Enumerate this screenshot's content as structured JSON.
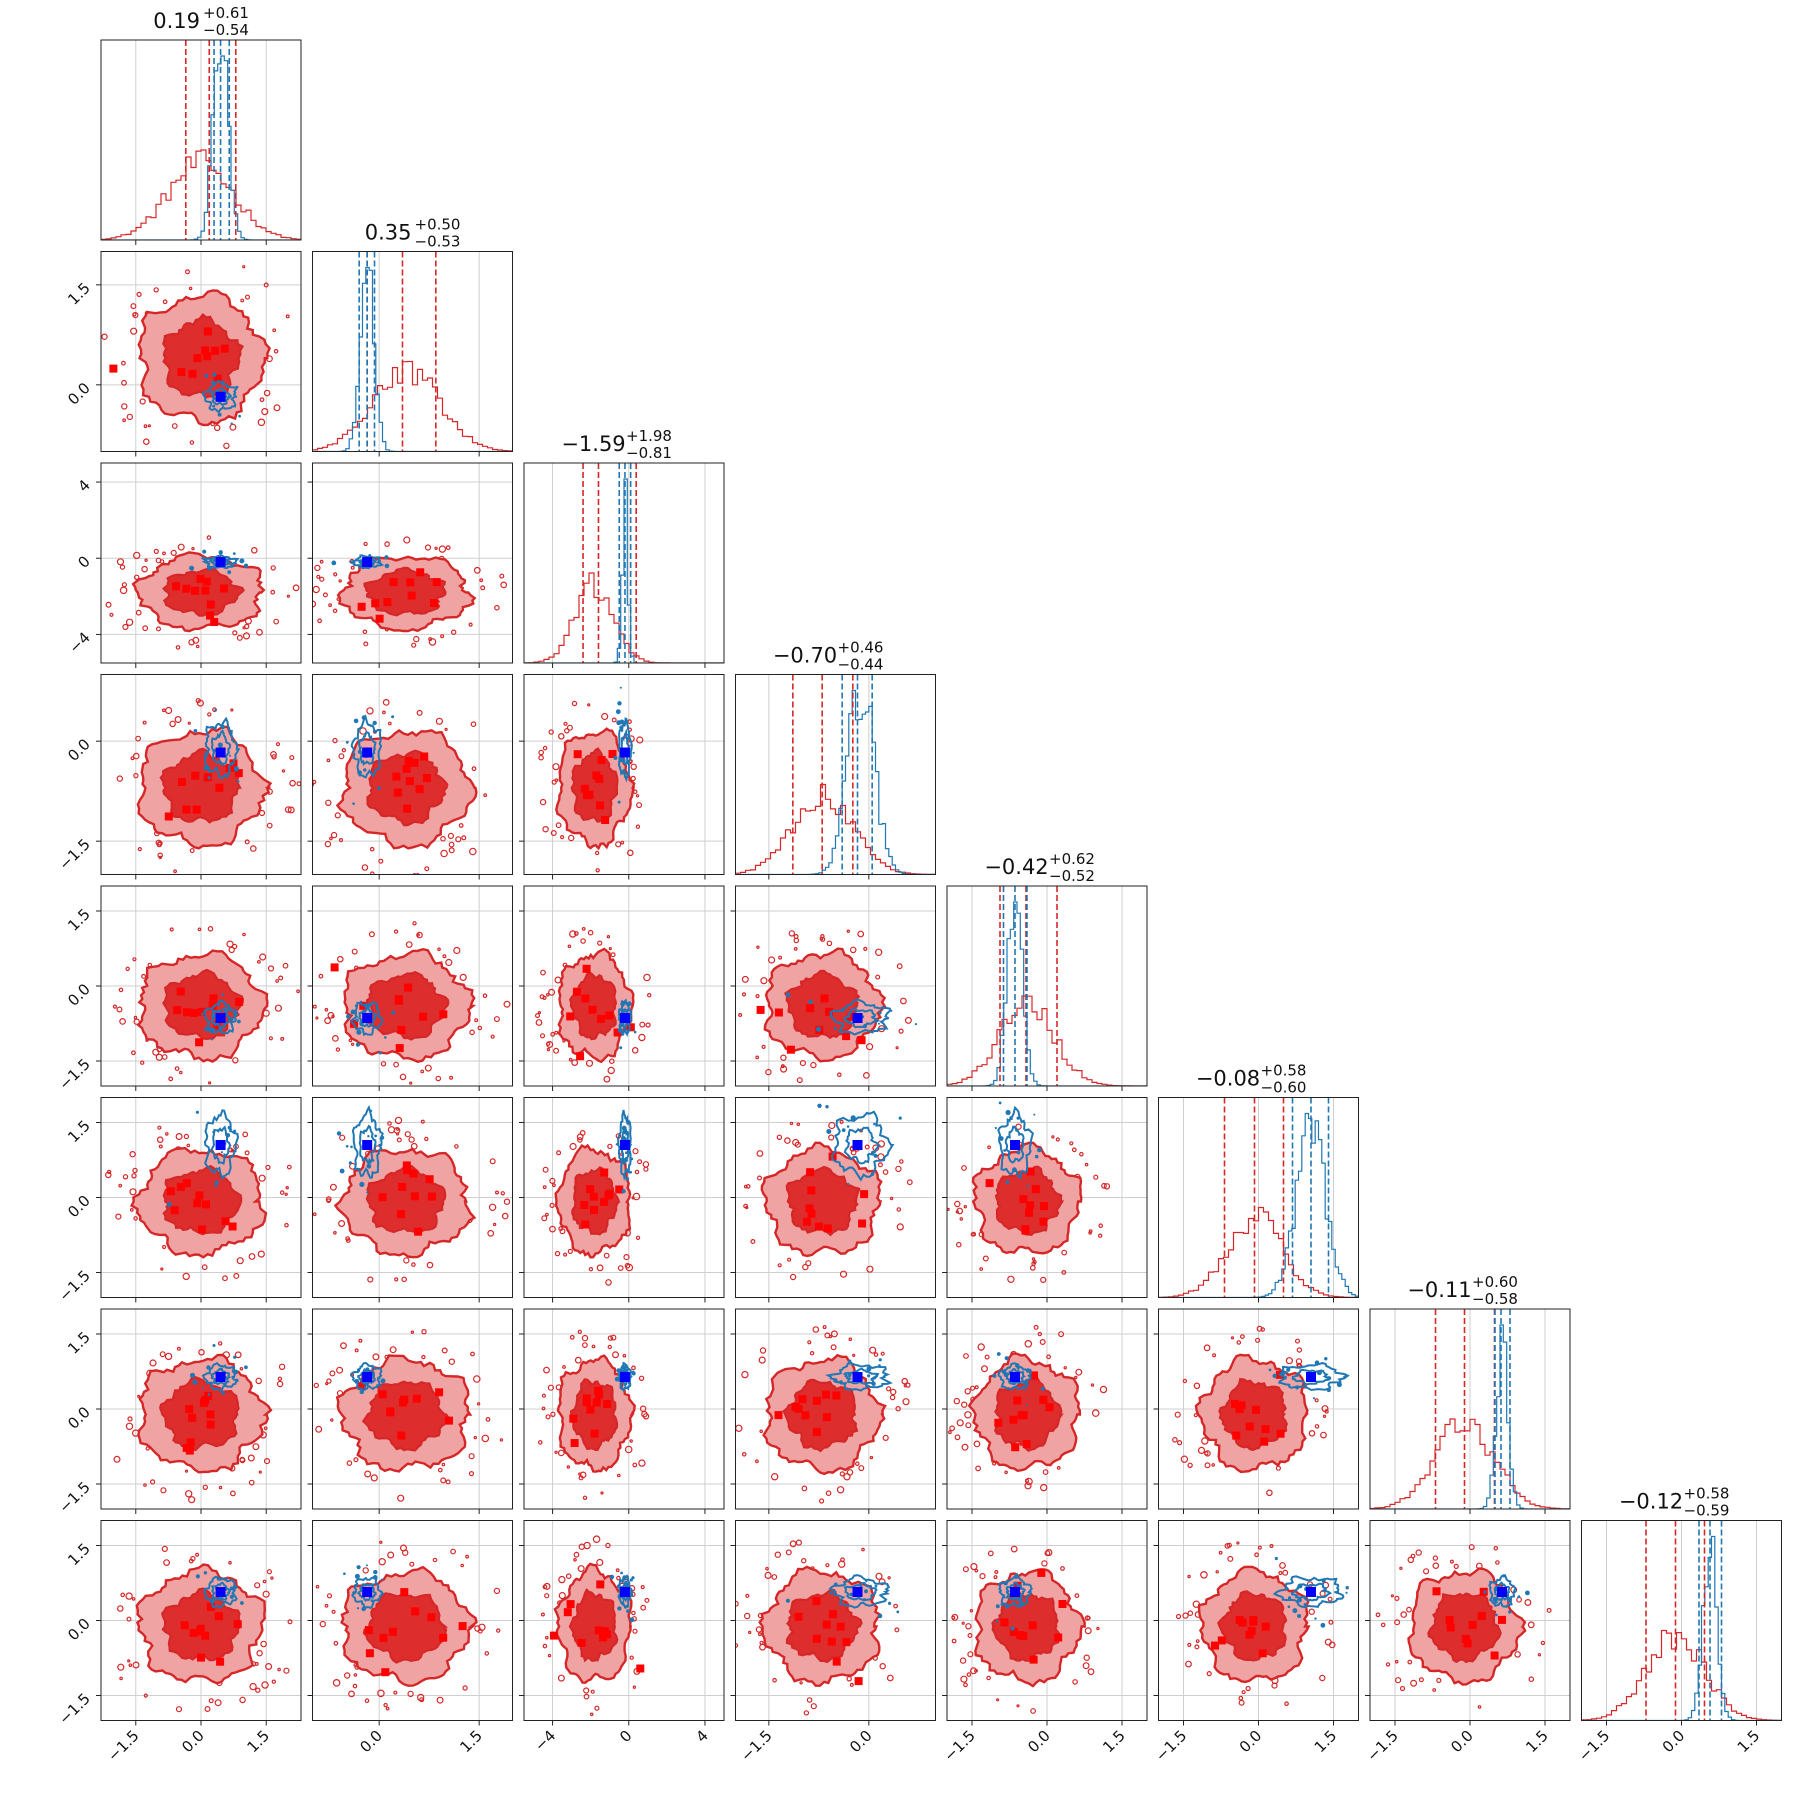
{
  "chart_data": {
    "type": "corner",
    "n_params": 8,
    "series": [
      {
        "name": "",
        "color": "#d62728",
        "role": "broad posterior"
      },
      {
        "name": "",
        "color": "#1f77b4",
        "role": "narrow posterior"
      }
    ],
    "truth_marker_color": "#0000ff",
    "red_marker_color": "#ff0000",
    "grid": true,
    "params": [
      {
        "range": [
          -2.3,
          2.3
        ],
        "ticks": [
          -1.5,
          0.0,
          1.5
        ],
        "tick_labels": [
          "−1.5",
          "0.0",
          "1.5"
        ],
        "title_value": "0.19",
        "title_plus": "+0.61",
        "title_minus": "−0.54",
        "red_quantiles": [
          -0.35,
          0.19,
          0.8
        ],
        "blue_quantiles": [
          0.3,
          0.45,
          0.65
        ],
        "red_center": 0.0,
        "red_sd": 0.75,
        "blue_center": 0.45,
        "blue_sd": 0.17,
        "truth": 0.45
      },
      {
        "range": [
          -1.0,
          2.0
        ],
        "ticks": [
          0.0,
          1.5
        ],
        "tick_labels": [
          "0.0",
          "1.5"
        ],
        "title_value": "0.35",
        "title_plus": "+0.50",
        "title_minus": "−0.53",
        "red_quantiles": [
          -0.18,
          0.35,
          0.85
        ],
        "blue_quantiles": [
          -0.3,
          -0.18,
          -0.07
        ],
        "red_center": 0.4,
        "red_sd": 0.5,
        "blue_center": -0.18,
        "blue_sd": 0.1,
        "truth": -0.18
      },
      {
        "range": [
          -5.5,
          5.0
        ],
        "ticks": [
          -4,
          0,
          4
        ],
        "tick_labels": [
          "−4",
          "0",
          "4"
        ],
        "title_value": "−1.59",
        "title_plus": "+1.98",
        "title_minus": "−0.81",
        "red_quantiles": [
          -2.4,
          -1.59,
          0.39
        ],
        "blue_quantiles": [
          -0.5,
          -0.2,
          0.1
        ],
        "red_center": -1.8,
        "red_sd": 1.0,
        "blue_center": -0.2,
        "blue_sd": 0.15,
        "truth": -0.2
      },
      {
        "range": [
          -2.0,
          1.0
        ],
        "ticks": [
          -1.5,
          0.0
        ],
        "tick_labels": [
          "−1.5",
          "0.0"
        ],
        "title_value": "−0.70",
        "title_plus": "+0.46",
        "title_minus": "−0.44",
        "red_quantiles": [
          -1.14,
          -0.7,
          -0.24
        ],
        "blue_quantiles": [
          -0.4,
          -0.17,
          0.05
        ],
        "red_center": -0.7,
        "red_sd": 0.45,
        "blue_center": -0.12,
        "blue_sd": 0.2,
        "truth": -0.17
      },
      {
        "range": [
          -2.0,
          2.0
        ],
        "ticks": [
          -1.5,
          0.0,
          1.5
        ],
        "tick_labels": [
          "−1.5",
          "0.0",
          "1.5"
        ],
        "title_value": "−0.42",
        "title_plus": "+0.62",
        "title_minus": "−0.52",
        "red_quantiles": [
          -0.94,
          -0.42,
          0.2
        ],
        "blue_quantiles": [
          -0.87,
          -0.64,
          -0.4
        ],
        "red_center": -0.4,
        "red_sd": 0.55,
        "blue_center": -0.64,
        "blue_sd": 0.15,
        "truth": -0.64
      },
      {
        "range": [
          -2.0,
          2.0
        ],
        "ticks": [
          -1.5,
          0.0,
          1.5
        ],
        "tick_labels": [
          "−1.5",
          "0.0",
          "1.5"
        ],
        "title_value": "−0.08",
        "title_plus": "+0.58",
        "title_minus": "−0.60",
        "red_quantiles": [
          -0.68,
          -0.08,
          0.5
        ],
        "blue_quantiles": [
          0.68,
          1.05,
          1.4
        ],
        "red_center": -0.08,
        "red_sd": 0.55,
        "blue_center": 1.05,
        "blue_sd": 0.3,
        "truth": 1.05
      },
      {
        "range": [
          -2.0,
          2.0
        ],
        "ticks": [
          -1.5,
          0.0,
          1.5
        ],
        "tick_labels": [
          "−1.5",
          "0.0",
          "1.5"
        ],
        "title_value": "−0.11",
        "title_plus": "+0.60",
        "title_minus": "−0.58",
        "red_quantiles": [
          -0.69,
          -0.11,
          0.49
        ],
        "blue_quantiles": [
          0.5,
          0.62,
          0.8
        ],
        "red_center": -0.11,
        "red_sd": 0.58,
        "blue_center": 0.64,
        "blue_sd": 0.12,
        "truth": 0.64
      },
      {
        "range": [
          -2.0,
          2.0
        ],
        "ticks": [
          -1.5,
          0.0,
          1.5
        ],
        "tick_labels": [
          "−1.5",
          "0.0",
          "1.5"
        ],
        "title_value": "−0.12",
        "title_plus": "+0.58",
        "title_minus": "−0.59",
        "red_quantiles": [
          -0.71,
          -0.12,
          0.46
        ],
        "blue_quantiles": [
          0.35,
          0.57,
          0.8
        ],
        "red_center": -0.12,
        "red_sd": 0.58,
        "blue_center": 0.57,
        "blue_sd": 0.14,
        "truth": 0.57
      }
    ]
  }
}
